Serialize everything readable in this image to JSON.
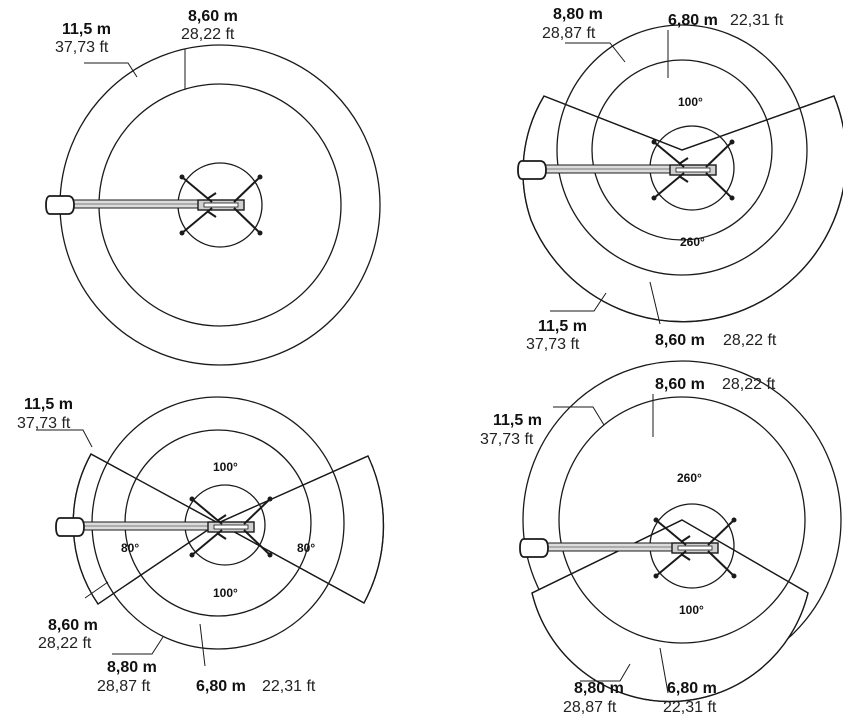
{
  "diagrams": [
    {
      "outer": {
        "m": "11,5 m",
        "ft": "37,73 ft"
      },
      "inner": {
        "m": "8,60 m",
        "ft": "28,22 ft"
      }
    },
    {
      "top_left": {
        "m": "8,80 m",
        "ft": "28,87 ft"
      },
      "top_right": {
        "m": "6,80 m",
        "ft": "22,31 ft"
      },
      "angle_top": "100°",
      "angle_bottom": "260°",
      "bottom_left": {
        "m": "11,5 m",
        "ft": "37,73 ft"
      },
      "bottom_right": {
        "m": "8,60 m",
        "ft": "28,22 ft"
      }
    },
    {
      "outer": {
        "m": "11,5 m",
        "ft": "37,73 ft"
      },
      "angle_top": "100°",
      "angle_left": "80°",
      "angle_right": "80°",
      "angle_bottom": "100°",
      "inner": {
        "m": "8,60 m",
        "ft": "28,22 ft"
      },
      "mid": {
        "m": "8,80 m",
        "ft": "28,87 ft"
      },
      "small": {
        "m": "6,80 m",
        "ft": "22,31 ft"
      }
    },
    {
      "top": {
        "m": "8,60 m",
        "ft": "28,22 ft"
      },
      "outer": {
        "m": "11,5 m",
        "ft": "37,73 ft"
      },
      "angle_top": "260°",
      "angle_bottom": "100°",
      "bottom_left": {
        "m": "8,80 m",
        "ft": "28,87 ft"
      },
      "bottom_right": {
        "m": "6,80 m",
        "ft": "22,31 ft"
      }
    }
  ]
}
